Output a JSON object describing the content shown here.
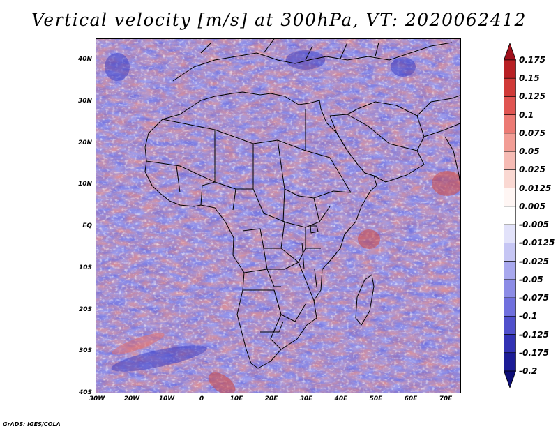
{
  "title": "Vertical velocity [m/s] at 300hPa, VT: 2020062412",
  "footer": "GrADS: IGES/COLA",
  "map": {
    "lat_labels": [
      "40N",
      "30N",
      "20N",
      "10N",
      "EQ",
      "10S",
      "20S",
      "30S",
      "40S"
    ],
    "lon_labels": [
      "30W",
      "20W",
      "10W",
      "0",
      "10E",
      "20E",
      "30E",
      "40E",
      "50E",
      "60E",
      "70E"
    ]
  },
  "colorbar": {
    "labels": [
      "0.175",
      "0.15",
      "0.125",
      "0.1",
      "0.075",
      "0.05",
      "0.025",
      "0.0125",
      "0.005",
      "-0.005",
      "-0.0125",
      "-0.025",
      "-0.05",
      "-0.075",
      "-0.1",
      "-0.125",
      "-0.175",
      "-0.2"
    ],
    "colors": [
      "#a0101c",
      "#b82024",
      "#d03a38",
      "#e05552",
      "#ec7a74",
      "#f29d95",
      "#f6bbb4",
      "#fad8d2",
      "#fff6f4",
      "#ffffff",
      "#e2e2fa",
      "#c6c6f4",
      "#a8a8ee",
      "#8c8ce6",
      "#7070de",
      "#5050cc",
      "#3232b4",
      "#1c1c96",
      "#0e0e78"
    ]
  }
}
